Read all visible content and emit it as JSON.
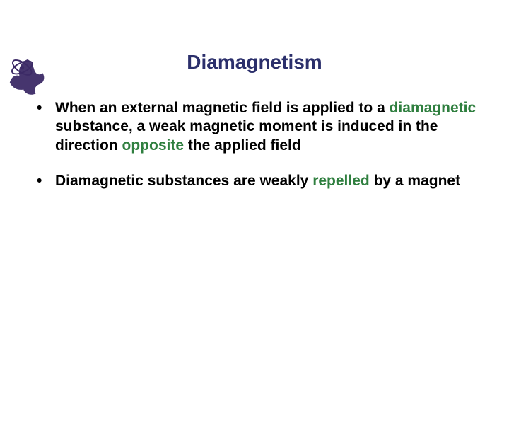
{
  "title": {
    "text": "Diamagnetism",
    "color": "#2b2f6b",
    "fontsize": 28
  },
  "body": {
    "fontsize": 21,
    "textcolor": "#000000",
    "highlight_color": "#2f7f3f",
    "items": [
      {
        "segments": [
          {
            "t": "When an external magnetic field is applied to a "
          },
          {
            "t": "diamagnetic",
            "hl": true
          },
          {
            "t": " substance, a weak magnetic moment is induced in the direction "
          },
          {
            "t": "opposite",
            "hl": true
          },
          {
            "t": " the applied field"
          }
        ]
      },
      {
        "segments": [
          {
            "t": "Diamagnetic substances are weakly "
          },
          {
            "t": "repelled",
            "hl": true
          },
          {
            "t": " by a magnet"
          }
        ]
      }
    ]
  },
  "logo": {
    "color": "#3c2a66"
  }
}
